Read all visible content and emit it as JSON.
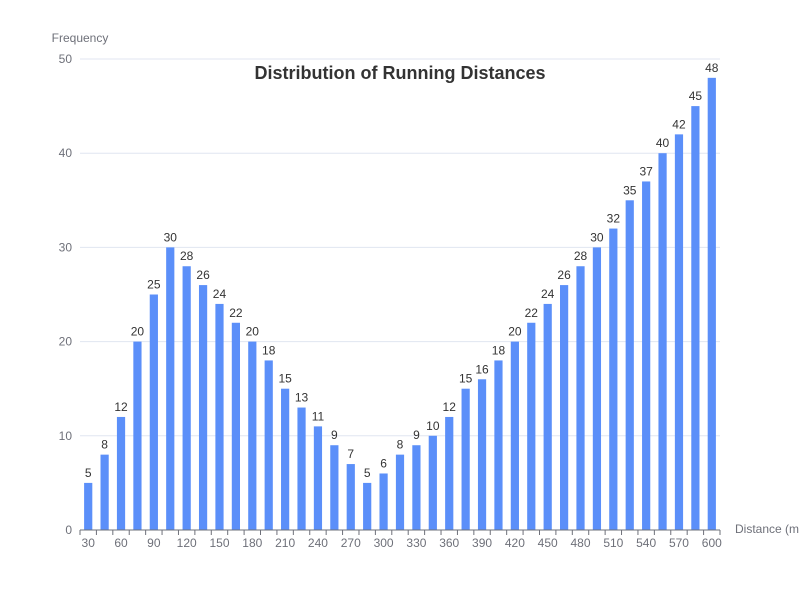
{
  "chart_data": {
    "type": "bar",
    "title": "Distribution of Running Distances",
    "xlabel": "Distance (m",
    "ylabel": "Frequency",
    "ylim": [
      0,
      50
    ],
    "yticks": [
      0,
      10,
      20,
      30,
      40,
      50
    ],
    "grid": true,
    "legend": "none",
    "bar_color": "#5b8ff9",
    "categories": [
      30,
      45,
      60,
      75,
      90,
      105,
      120,
      135,
      150,
      165,
      180,
      195,
      210,
      225,
      240,
      255,
      270,
      285,
      300,
      315,
      330,
      345,
      360,
      375,
      390,
      405,
      420,
      435,
      450,
      465,
      480,
      495,
      510,
      525,
      540,
      555,
      570,
      585,
      600
    ],
    "xtick_labels": [
      "30",
      "60",
      "90",
      "120",
      "150",
      "180",
      "210",
      "240",
      "270",
      "300",
      "330",
      "360",
      "390",
      "420",
      "450",
      "480",
      "510",
      "540",
      "570",
      "600"
    ],
    "values": [
      5,
      8,
      12,
      20,
      25,
      30,
      28,
      26,
      24,
      22,
      20,
      18,
      15,
      13,
      11,
      9,
      7,
      5,
      6,
      8,
      9,
      10,
      12,
      15,
      16,
      18,
      20,
      22,
      24,
      26,
      28,
      30,
      32,
      35,
      37,
      40,
      42,
      45,
      48
    ]
  }
}
